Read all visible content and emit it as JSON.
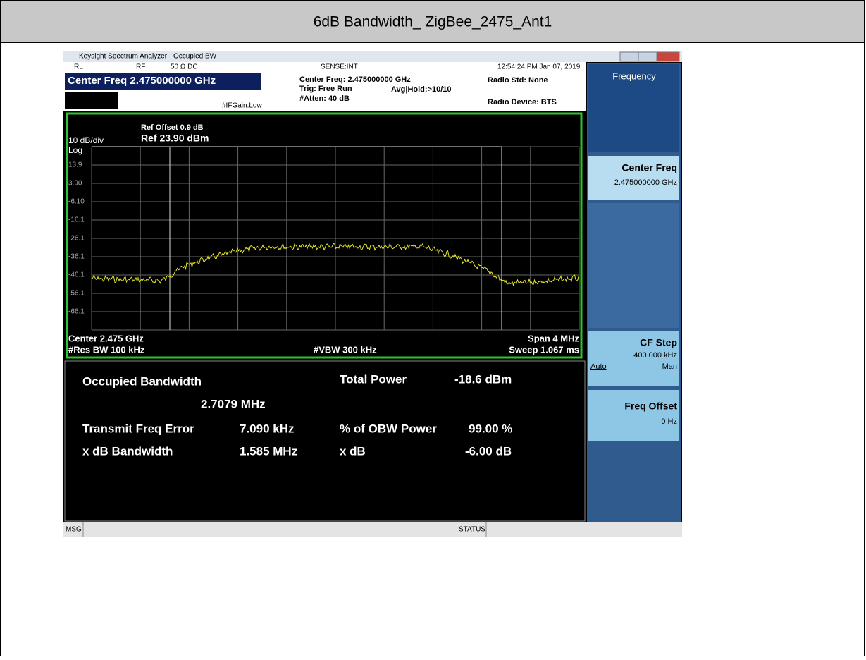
{
  "document": {
    "title": "6dB Bandwidth_ ZigBee_2475_Ant1"
  },
  "window": {
    "title": "Keysight Spectrum Analyzer - Occupied BW"
  },
  "status_row": {
    "rl": "RL",
    "rf": "RF",
    "impedance": "50 Ω  DC",
    "sense": "SENSE:INT",
    "timestamp": "12:54:24 PM Jan 07, 2019"
  },
  "info": {
    "center_freq": "Center Freq 2.475000000 GHz",
    "if_gain": "#IFGain:Low",
    "center_freq_detail": "Center Freq: 2.475000000 GHz",
    "trig": "Trig: Free Run",
    "avg_hold": "Avg|Hold:>10/10",
    "atten": "#Atten: 40 dB",
    "radio_std": "Radio Std: None",
    "radio_device": "Radio Device: BTS"
  },
  "plot": {
    "ref_offset": "Ref Offset 0.9 dB",
    "ref_level": "Ref 23.90 dBm",
    "scale": "10 dB/div",
    "log": "Log",
    "y_labels": [
      "13.9",
      "3.90",
      "-6.10",
      "-16.1",
      "-26.1",
      "-36.1",
      "-46.1",
      "-56.1",
      "-66.1"
    ],
    "center": "Center  2.475 GHz",
    "res_bw": "#Res BW  100 kHz",
    "vbw": "#VBW  300 kHz",
    "span": "Span 4 MHz",
    "sweep": "Sweep  1.067 ms"
  },
  "results": {
    "obw_label": "Occupied Bandwidth",
    "obw_value": "2.7079 MHz",
    "total_power_label": "Total Power",
    "total_power_value": "-18.6 dBm",
    "freq_error_label": "Transmit Freq Error",
    "freq_error_value": "7.090 kHz",
    "obw_power_label": "% of OBW Power",
    "obw_power_value": "99.00 %",
    "xdb_bw_label": "x dB Bandwidth",
    "xdb_bw_value": "1.585 MHz",
    "xdb_label": "x dB",
    "xdb_value": "-6.00 dB"
  },
  "softkeys": {
    "menu": "Frequency",
    "center_freq": "Center Freq",
    "center_freq_value": "2.475000000 GHz",
    "cf_step": "CF Step",
    "cf_step_value": "400.000 kHz",
    "auto": "Auto",
    "man": "Man",
    "freq_offset": "Freq Offset",
    "freq_offset_value": "0 Hz"
  },
  "status_bar": {
    "msg": "MSG",
    "status": "STATUS"
  }
}
